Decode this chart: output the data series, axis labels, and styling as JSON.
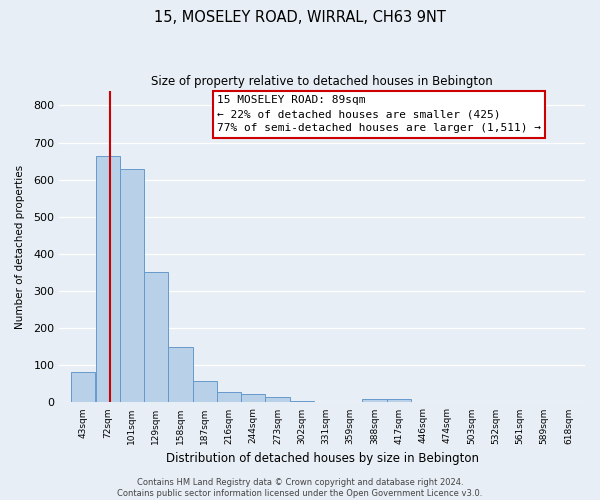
{
  "title": "15, MOSELEY ROAD, WIRRAL, CH63 9NT",
  "subtitle": "Size of property relative to detached houses in Bebington",
  "xlabel": "Distribution of detached houses by size in Bebington",
  "ylabel": "Number of detached properties",
  "bar_labels": [
    "43sqm",
    "72sqm",
    "101sqm",
    "129sqm",
    "158sqm",
    "187sqm",
    "216sqm",
    "244sqm",
    "273sqm",
    "302sqm",
    "331sqm",
    "359sqm",
    "388sqm",
    "417sqm",
    "446sqm",
    "474sqm",
    "503sqm",
    "532sqm",
    "561sqm",
    "589sqm",
    "618sqm"
  ],
  "bar_values": [
    83,
    663,
    630,
    350,
    148,
    58,
    27,
    22,
    15,
    5,
    0,
    0,
    8,
    8,
    0,
    0,
    0,
    0,
    0,
    0,
    0
  ],
  "bar_color": "#b8d0e8",
  "bar_edgecolor": "#6699cc",
  "property_line_label": "15 MOSELEY ROAD: 89sqm",
  "annotation_line1": "← 22% of detached houses are smaller (425)",
  "annotation_line2": "77% of semi-detached houses are larger (1,511) →",
  "vline_color": "#cc0000",
  "vline_x_index": 1.7,
  "ylim": [
    0,
    840
  ],
  "yticks": [
    0,
    100,
    200,
    300,
    400,
    500,
    600,
    700,
    800
  ],
  "footer_line1": "Contains HM Land Registry data © Crown copyright and database right 2024.",
  "footer_line2": "Contains public sector information licensed under the Open Government Licence v3.0.",
  "bg_color": "#e8eef5",
  "plot_bg_color": "#e8eef5",
  "grid_color": "#ffffff",
  "bin_starts": [
    43,
    72,
    101,
    129,
    158,
    187,
    216,
    244,
    273,
    302,
    331,
    359,
    388,
    417,
    446,
    474,
    503,
    532,
    561,
    589,
    618
  ],
  "bin_widths": [
    29,
    29,
    28,
    29,
    29,
    29,
    28,
    29,
    29,
    29,
    28,
    29,
    29,
    29,
    28,
    29,
    29,
    29,
    28,
    29,
    29
  ]
}
